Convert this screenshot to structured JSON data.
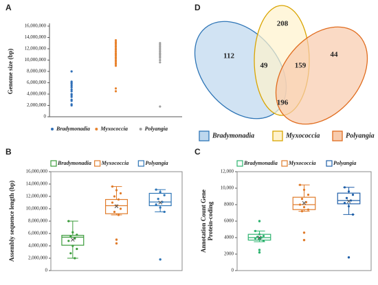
{
  "chart_data": [
    {
      "type": "strip",
      "panel": "A",
      "ylabel": "Genome size (bp)",
      "legend": "bottom",
      "ylim": [
        0,
        16000000
      ],
      "yticks": [
        0,
        {
          "value": 2000000,
          "label": "2,000,000"
        },
        {
          "value": 4000000,
          "label": "4,000,000"
        },
        {
          "value": 6000000,
          "label": "6,000,000"
        },
        {
          "value": 8000000,
          "label": "8,000,000"
        },
        {
          "value": 10000000,
          "label": "10,000,000"
        },
        {
          "value": 12000000,
          "label": "12,000,000"
        },
        {
          "value": 14000000,
          "label": "14,000,000"
        },
        {
          "value": 16000000,
          "label": "16,000,000"
        }
      ],
      "series": [
        {
          "name": "Bradymonadia",
          "color": "#2f6fb8",
          "values": [
            8000000,
            6200000,
            6000000,
            5800000,
            5500000,
            5200000,
            4800000,
            4500000,
            4000000,
            3800000,
            3500000,
            3000000,
            2800000,
            2200000,
            2000000
          ]
        },
        {
          "name": "Myxococcia",
          "color": "#e8832e",
          "values": [
            13500000,
            13200000,
            13000000,
            12800000,
            12500000,
            12300000,
            12000000,
            11800000,
            11500000,
            11200000,
            11000000,
            10800000,
            10500000,
            10300000,
            10000000,
            9800000,
            9500000,
            9300000,
            9000000,
            5000000,
            4500000
          ]
        },
        {
          "name": "Polyangia",
          "color": "#a0a0a0",
          "values": [
            13000000,
            12700000,
            12400000,
            12100000,
            11800000,
            11500000,
            11200000,
            11000000,
            10700000,
            10400000,
            10000000,
            9600000,
            1800000
          ]
        }
      ]
    },
    {
      "type": "box",
      "panel": "B",
      "ylabel": "Assembly sequence length (bp)",
      "legend": "top",
      "ylim": [
        0,
        16000000
      ],
      "yticks": [
        0,
        {
          "value": 2000000,
          "label": "2,000,000"
        },
        {
          "value": 4000000,
          "label": "4,000,000"
        },
        {
          "value": 6000000,
          "label": "6,000,000"
        },
        {
          "value": 8000000,
          "label": "8,000,000"
        },
        {
          "value": 10000000,
          "label": "10,000,000"
        },
        {
          "value": 12000000,
          "label": "12,000,000"
        },
        {
          "value": 14000000,
          "label": "14,000,000"
        },
        {
          "value": 16000000,
          "label": "16,000,000"
        }
      ],
      "series": [
        {
          "name": "Bradymonadia",
          "color": "#3a9b3a",
          "min": 2000000,
          "q1": 4100000,
          "median": 5400000,
          "q3": 5700000,
          "max": 8000000,
          "mean": 5000000,
          "outliers": [],
          "points": [
            8000000,
            6200000,
            5800000,
            5500000,
            5200000,
            4800000,
            4000000,
            3500000,
            2800000,
            2000000
          ]
        },
        {
          "name": "Myxococcia",
          "color": "#e07b2a",
          "min": 9000000,
          "q1": 9200000,
          "median": 10500000,
          "q3": 11500000,
          "max": 13600000,
          "mean": 10400000,
          "outliers": [
            5000000,
            4400000
          ],
          "points": [
            13600000,
            13000000,
            12500000,
            12000000,
            11500000,
            11000000,
            10500000,
            10000000,
            9500000,
            9000000
          ]
        },
        {
          "name": "Polyangia",
          "color": "#2e75b6",
          "min": 9500000,
          "q1": 10500000,
          "median": 11100000,
          "q3": 12500000,
          "max": 13100000,
          "mean": 11000000,
          "outliers": [
            1800000
          ],
          "points": [
            13100000,
            12700000,
            12200000,
            11600000,
            11100000,
            10700000,
            10200000,
            9500000
          ]
        }
      ]
    },
    {
      "type": "box",
      "panel": "C",
      "ylabel": [
        "Annotation Count Gene",
        "Protein-coding"
      ],
      "legend": "top",
      "ylim": [
        0,
        12000
      ],
      "yticks": [
        0,
        2000,
        4000,
        6000,
        8000,
        {
          "value": 10000,
          "label": "10,000"
        },
        {
          "value": 12000,
          "label": "12,000"
        }
      ],
      "series": [
        {
          "name": "Bradymonadia",
          "color": "#2db36f",
          "min": 3500,
          "q1": 3700,
          "median": 4000,
          "q3": 4400,
          "max": 4800,
          "mean": 4000,
          "outliers": [
            6000,
            2500,
            2200
          ],
          "points": [
            4800,
            4400,
            4200,
            4100,
            4000,
            3900,
            3800,
            3600
          ]
        },
        {
          "name": "Myxococcia",
          "color": "#e07b2a",
          "min": 7200,
          "q1": 7400,
          "median": 8000,
          "q3": 8900,
          "max": 10400,
          "mean": 8200,
          "outliers": [
            4600,
            3700
          ],
          "points": [
            10400,
            9800,
            9200,
            8700,
            8300,
            8000,
            7700,
            7400,
            7200
          ]
        },
        {
          "name": "Polyangia",
          "color": "#1f5fa8",
          "min": 6800,
          "q1": 8100,
          "median": 8500,
          "q3": 9400,
          "max": 10100,
          "mean": 8400,
          "outliers": [
            1600
          ],
          "points": [
            10100,
            9600,
            9200,
            8800,
            8500,
            8200,
            7800,
            6800
          ]
        }
      ]
    },
    {
      "type": "venn",
      "panel": "D",
      "series": [
        {
          "name": "Bradymonadia",
          "color": "#2e75b6",
          "fill": "#bdd7ee"
        },
        {
          "name": "Myxococcia",
          "color": "#d9a400",
          "fill": "#fff2cc"
        },
        {
          "name": "Polyangia",
          "color": "#e06c1e",
          "fill": "#f8cbad"
        }
      ],
      "values": [
        112,
        208,
        44,
        49,
        159,
        196
      ]
    }
  ]
}
